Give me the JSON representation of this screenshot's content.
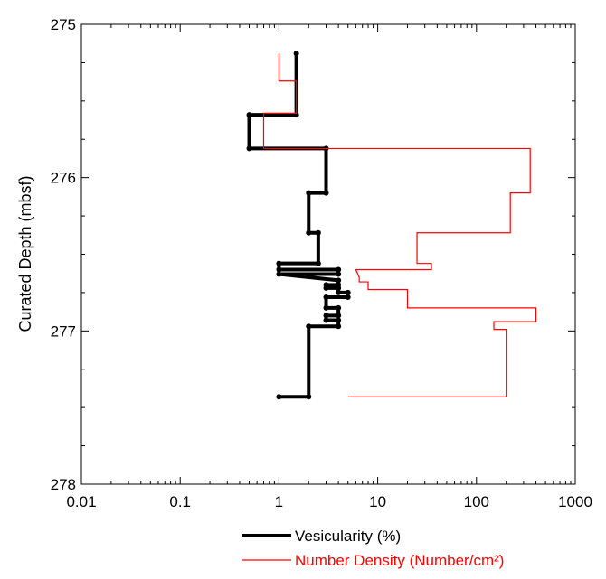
{
  "chart_data": {
    "type": "line",
    "title": "",
    "xlabel": "",
    "ylabel": "Curated Depth (mbsf)",
    "x_scale": "log",
    "xlim": [
      0.01,
      1000
    ],
    "ylim": [
      275,
      278
    ],
    "y_inverted": true,
    "grid": false,
    "legend_position": "bottom-center",
    "x_ticks": [
      {
        "value": 0.01,
        "label": "0.01"
      },
      {
        "value": 0.1,
        "label": "0.1"
      },
      {
        "value": 1,
        "label": "1"
      },
      {
        "value": 10,
        "label": "10"
      },
      {
        "value": 100,
        "label": "100"
      },
      {
        "value": 1000,
        "label": "1000"
      }
    ],
    "y_ticks": [
      {
        "value": 275,
        "label": "275"
      },
      {
        "value": 276,
        "label": "276"
      },
      {
        "value": 277,
        "label": "277"
      },
      {
        "value": 278,
        "label": "278"
      }
    ],
    "series": [
      {
        "name": "Vesicularity (%)",
        "color": "#000000",
        "style": "thick-step-with-markers",
        "points": [
          {
            "x": 1.5,
            "y": 275.19
          },
          {
            "x": 1.5,
            "y": 275.59
          },
          {
            "x": 0.5,
            "y": 275.59
          },
          {
            "x": 0.5,
            "y": 275.81
          },
          {
            "x": 3.0,
            "y": 275.81
          },
          {
            "x": 3.0,
            "y": 276.1
          },
          {
            "x": 2.0,
            "y": 276.1
          },
          {
            "x": 2.0,
            "y": 276.36
          },
          {
            "x": 2.5,
            "y": 276.36
          },
          {
            "x": 2.5,
            "y": 276.56
          },
          {
            "x": 1.0,
            "y": 276.56
          },
          {
            "x": 1.0,
            "y": 276.6
          },
          {
            "x": 4.0,
            "y": 276.6
          },
          {
            "x": 4.0,
            "y": 276.63
          },
          {
            "x": 1.0,
            "y": 276.63
          },
          {
            "x": 4.0,
            "y": 276.67
          },
          {
            "x": 4.0,
            "y": 276.7
          },
          {
            "x": 3.0,
            "y": 276.7
          },
          {
            "x": 3.0,
            "y": 276.72
          },
          {
            "x": 4.0,
            "y": 276.72
          },
          {
            "x": 4.0,
            "y": 276.75
          },
          {
            "x": 5.0,
            "y": 276.75
          },
          {
            "x": 5.0,
            "y": 276.78
          },
          {
            "x": 3.0,
            "y": 276.78
          },
          {
            "x": 3.0,
            "y": 276.85
          },
          {
            "x": 4.0,
            "y": 276.85
          },
          {
            "x": 4.0,
            "y": 276.9
          },
          {
            "x": 3.0,
            "y": 276.9
          },
          {
            "x": 3.0,
            "y": 276.93
          },
          {
            "x": 4.0,
            "y": 276.93
          },
          {
            "x": 4.0,
            "y": 276.97
          },
          {
            "x": 2.0,
            "y": 276.97
          },
          {
            "x": 2.0,
            "y": 277.43
          },
          {
            "x": 1.0,
            "y": 277.43
          }
        ]
      },
      {
        "name": "Number Density (Number/cm²)",
        "color": "#ff0000",
        "style": "thin-step",
        "points": [
          {
            "x": 1.0,
            "y": 275.19
          },
          {
            "x": 1.0,
            "y": 275.37
          },
          {
            "x": 1.5,
            "y": 275.37
          },
          {
            "x": 1.5,
            "y": 275.58
          },
          {
            "x": 0.7,
            "y": 275.58
          },
          {
            "x": 0.7,
            "y": 275.81
          },
          {
            "x": 350,
            "y": 275.81
          },
          {
            "x": 350,
            "y": 276.1
          },
          {
            "x": 220,
            "y": 276.1
          },
          {
            "x": 220,
            "y": 276.36
          },
          {
            "x": 25,
            "y": 276.36
          },
          {
            "x": 25,
            "y": 276.56
          },
          {
            "x": 35,
            "y": 276.56
          },
          {
            "x": 35,
            "y": 276.6
          },
          {
            "x": 6,
            "y": 276.6
          },
          {
            "x": 6.5,
            "y": 276.65
          },
          {
            "x": 6.5,
            "y": 276.68
          },
          {
            "x": 8,
            "y": 276.68
          },
          {
            "x": 8,
            "y": 276.73
          },
          {
            "x": 20,
            "y": 276.73
          },
          {
            "x": 20,
            "y": 276.85
          },
          {
            "x": 400,
            "y": 276.85
          },
          {
            "x": 400,
            "y": 276.94
          },
          {
            "x": 150,
            "y": 276.94
          },
          {
            "x": 150,
            "y": 276.99
          },
          {
            "x": 200,
            "y": 276.99
          },
          {
            "x": 200,
            "y": 277.43
          },
          {
            "x": 5,
            "y": 277.43
          }
        ]
      }
    ],
    "legend": [
      {
        "label": "Vesicularity (%)",
        "color": "#000000"
      },
      {
        "label": "Number Density (Number/cm²)",
        "color": "#ff0000"
      }
    ]
  }
}
